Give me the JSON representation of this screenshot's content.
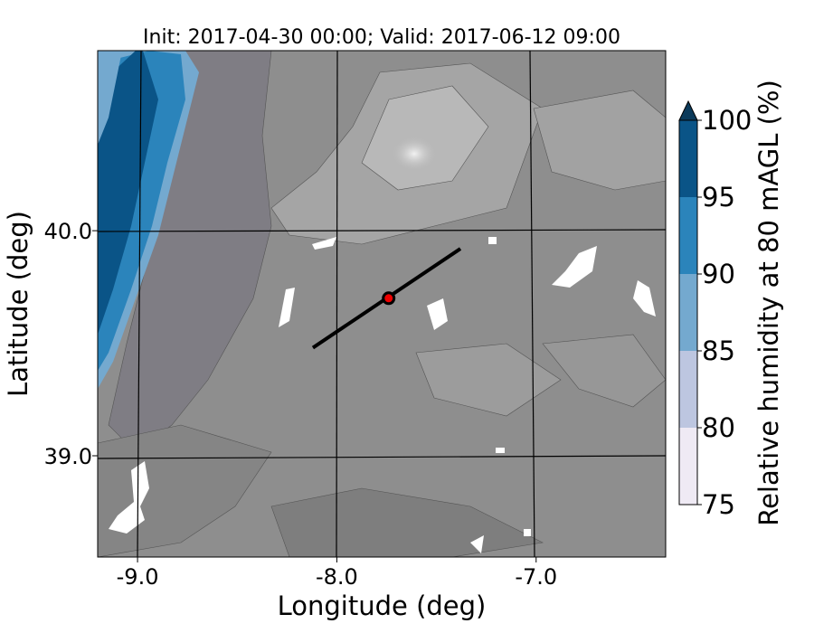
{
  "chart_data": {
    "type": "heatmap",
    "title": "Init: 2017-04-30 00:00; Valid: 2017-06-12 09:00",
    "xlabel": "Longitude (deg)",
    "ylabel": "Latitude (deg)",
    "xlim": [
      -9.2,
      -6.35
    ],
    "ylim": [
      38.55,
      40.8
    ],
    "x_ticks": [
      {
        "value": -9.0,
        "label": "-9.0"
      },
      {
        "value": -8.0,
        "label": "-8.0"
      },
      {
        "value": -7.0,
        "label": "-7.0"
      }
    ],
    "y_ticks": [
      {
        "value": 40.0,
        "label": "40.0"
      },
      {
        "value": 39.0,
        "label": "39.0"
      }
    ],
    "grid": true,
    "colorbar": {
      "label": "Relative humidity at 80 mAGL (%)",
      "min": 75,
      "max": 100,
      "extend": "max",
      "extend_color": "#0b3a5a",
      "levels": [
        {
          "from": 75,
          "to": 80,
          "color": "#efeaf4"
        },
        {
          "from": 80,
          "to": 85,
          "color": "#bdc6e0"
        },
        {
          "from": 85,
          "to": 90,
          "color": "#74a9cf"
        },
        {
          "from": 90,
          "to": 95,
          "color": "#2b84bb"
        },
        {
          "from": 95,
          "to": 100,
          "color": "#0a5487"
        }
      ],
      "tick_labels": [
        "75",
        "80",
        "85",
        "90",
        "95",
        "100"
      ]
    },
    "cross_section_line": {
      "start": [
        -8.12,
        39.48
      ],
      "end": [
        -7.38,
        39.92
      ],
      "color": "#000000"
    },
    "marker": {
      "lon": -7.74,
      "lat": 39.7,
      "color": "#ee0000"
    }
  }
}
